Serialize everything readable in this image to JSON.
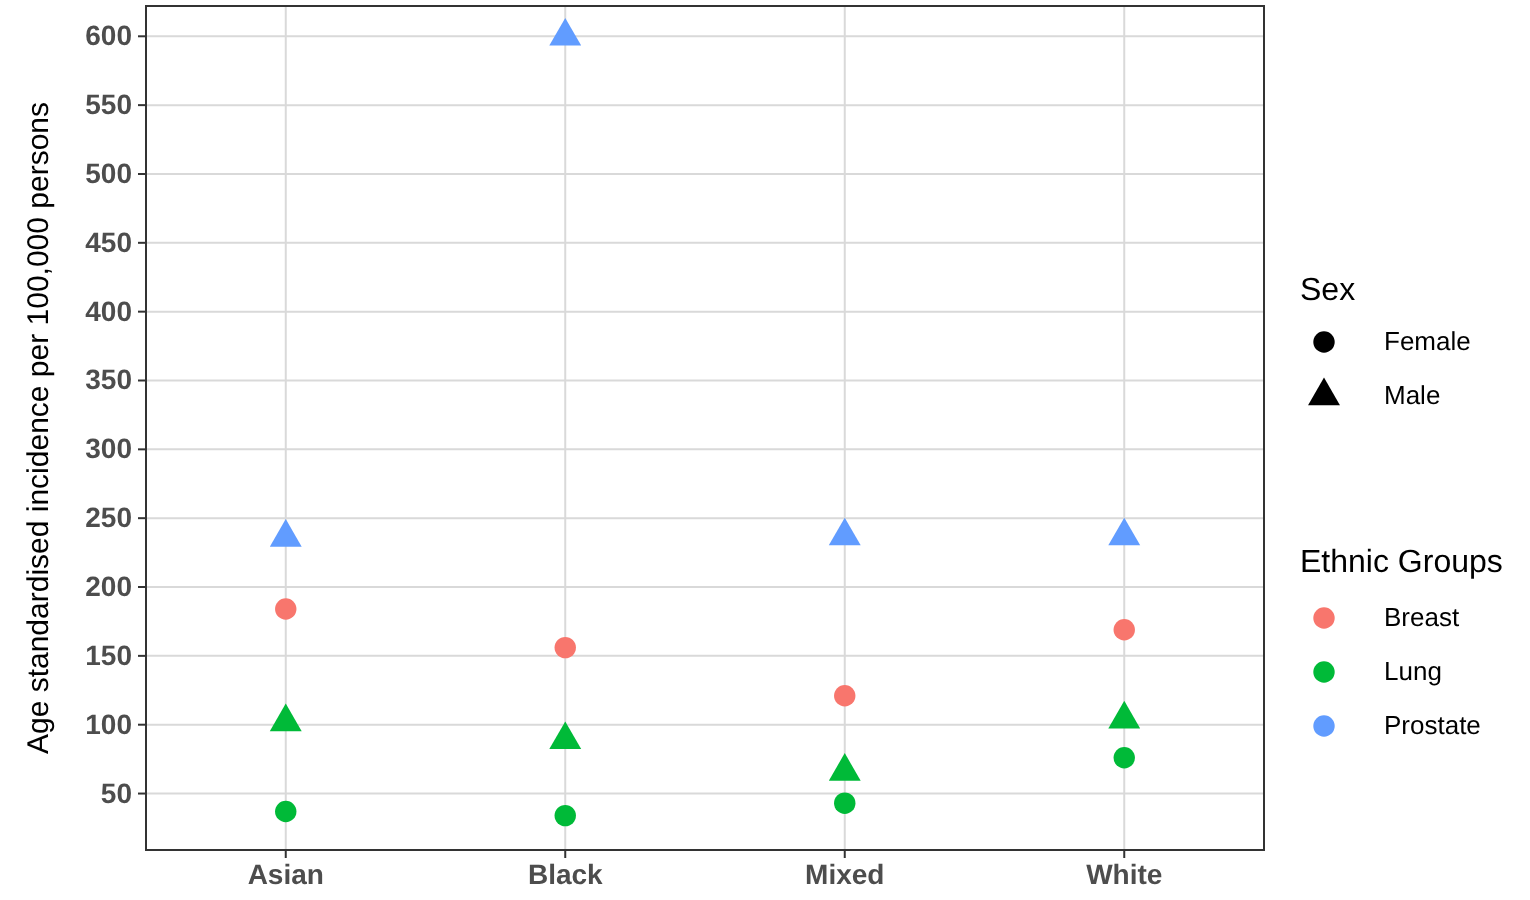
{
  "chart_data": {
    "type": "scatter",
    "ylabel": "Age standardised incidence per 100,000 persons",
    "categories": [
      "Asian",
      "Black",
      "Mixed",
      "White"
    ],
    "series": [
      {
        "name": "Breast",
        "color": "#f8766d",
        "marker": "circle",
        "values": [
          184,
          156,
          121,
          169
        ]
      },
      {
        "name": "Lung",
        "color": "#00ba38",
        "marker": "circle",
        "values": [
          37,
          34,
          43,
          76
        ]
      },
      {
        "color": "#00ba38",
        "marker": "triangle",
        "values": [
          102,
          89,
          66,
          104
        ]
      },
      {
        "name": "Prostate",
        "color": "#619cff",
        "marker": "triangle",
        "values": [
          236,
          600,
          237,
          237
        ]
      }
    ],
    "ylim": [
      9,
      622
    ],
    "yticks": [
      50,
      100,
      150,
      200,
      250,
      300,
      350,
      400,
      450,
      500,
      550,
      600
    ],
    "grid": true,
    "legend": "right",
    "legend_title": "Ethnic Groups",
    "annotations": [
      "Sex",
      "Female",
      "Male"
    ]
  }
}
